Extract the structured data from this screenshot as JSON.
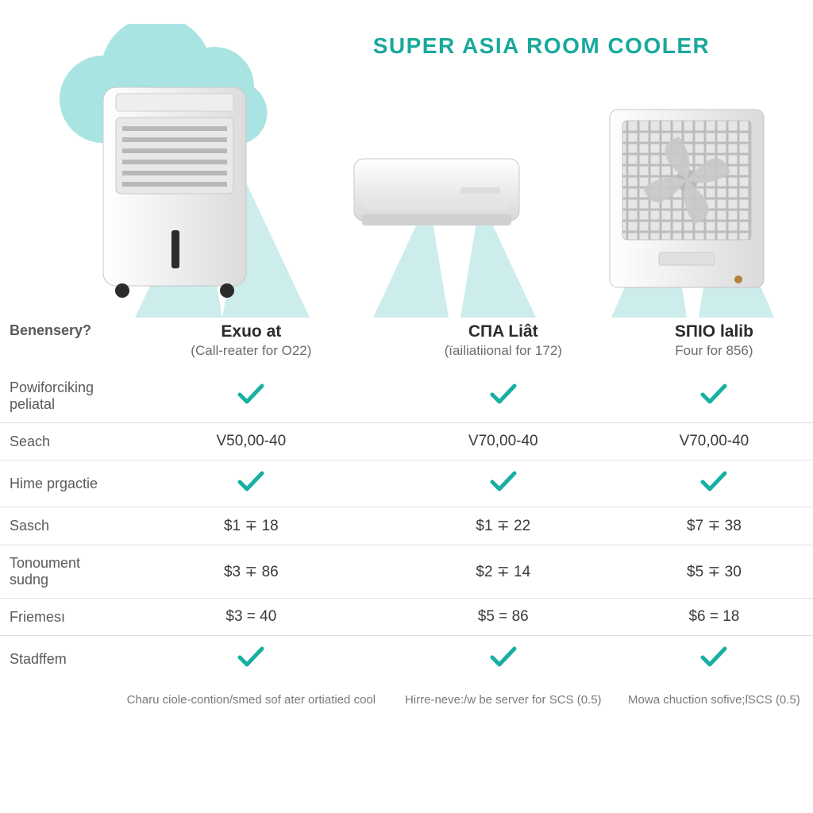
{
  "title": {
    "text": "SUPER ASIA ROOM COOLER",
    "color": "#18a99b",
    "fontsize": 28
  },
  "colors": {
    "cloud": "#a9e4e3",
    "beam": "#8ed8d4",
    "check": "#17b0a2",
    "border": "#e0e0e0",
    "text": "#3a3a3a",
    "muted": "#6b6b6b",
    "appliance_body": "#f2f2f2",
    "appliance_shadow": "#d3d3d3",
    "appliance_dark": "#bcbcbc"
  },
  "products": [
    {
      "name": "Exuo at",
      "sub": "(Call-reater for O22)"
    },
    {
      "name": "CПA Liât",
      "sub": "(ïailiatiional for 172)"
    },
    {
      "name": "SПIO lalib",
      "sub": "Four for 856)"
    }
  ],
  "table": {
    "header_label": "Benensery?",
    "rows": [
      {
        "label": "Powiforciking peliatal",
        "cells": [
          "check",
          "check",
          "check"
        ]
      },
      {
        "label": "Seach",
        "cells": [
          "V50,00-40",
          "V70,00-40",
          "V70,00-40"
        ]
      },
      {
        "label": "Hime prgactie",
        "cells": [
          "check",
          "check",
          "check"
        ]
      },
      {
        "label": "Sasch",
        "cells": [
          "$1 ∓ 18",
          "$1 ∓ 22",
          "$7 ∓ 38"
        ]
      },
      {
        "label": "Tonoument sudng",
        "cells": [
          "$3 ∓ 86",
          "$2 ∓ 14",
          "$5 ∓ 30"
        ]
      },
      {
        "label": "Friemesı",
        "cells": [
          "$3 = 40",
          "$5 = 86",
          "$6 = 18"
        ]
      },
      {
        "label": "Stadffem",
        "cells": [
          "check",
          "check",
          "check"
        ]
      }
    ],
    "footnotes": [
      "Charu ciole-contion/smed sof ater ortiatied cool",
      "Hirre-neve:/w be server for SCS (0.5)",
      "Mowa chuction sofive;ſSCS (0.5)"
    ]
  }
}
